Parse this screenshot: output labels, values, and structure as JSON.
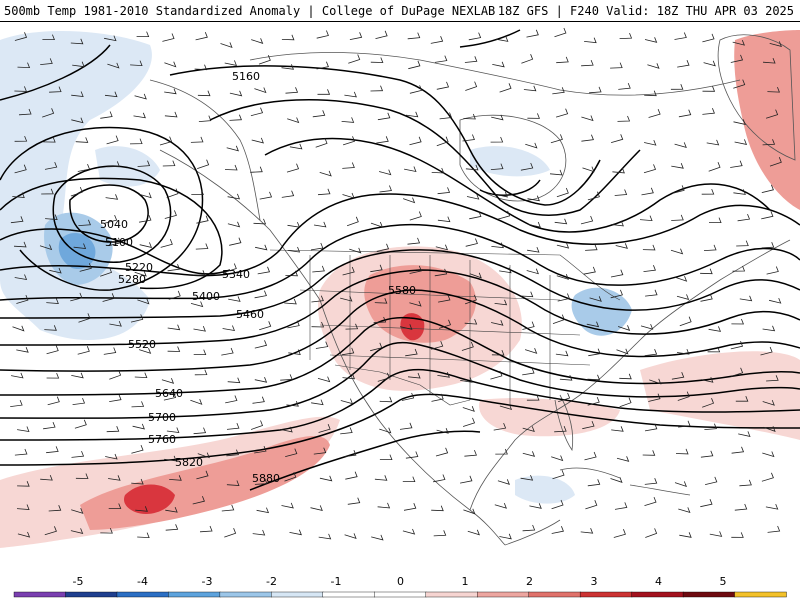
{
  "header": {
    "title_left": "500mb Temp 1981-2010 Standardized Anomaly | College of DuPage NEXLAB",
    "title_right": "18Z GFS | F240 Valid: 18Z THU APR 03 2025"
  },
  "contours": [
    {
      "label": "5040"
    },
    {
      "label": "5100"
    },
    {
      "label": "5160"
    },
    {
      "label": "5220"
    },
    {
      "label": "5280"
    },
    {
      "label": "5340"
    },
    {
      "label": "5400"
    },
    {
      "label": "5460"
    },
    {
      "label": "5520"
    },
    {
      "label": "5580"
    },
    {
      "label": "5640"
    },
    {
      "label": "5700"
    },
    {
      "label": "5760"
    },
    {
      "label": "5820"
    },
    {
      "label": "5880"
    }
  ],
  "legend": {
    "ticks": [
      "-5",
      "-4",
      "-3",
      "-2",
      "-1",
      "0",
      "1",
      "2",
      "3",
      "4",
      "5"
    ],
    "colors": [
      "#7a3fb0",
      "#1f3f8f",
      "#2b6fc4",
      "#5da3dd",
      "#9cc6e8",
      "#d6e6f4",
      "#ffffff",
      "#ffffff",
      "#f6d4d1",
      "#eda6a0",
      "#e0726b",
      "#cc3333",
      "#a3121e",
      "#6e0a10",
      "#f3c12a"
    ]
  },
  "shading_colors": {
    "cold_light": "#dce8f5",
    "cold_mid": "#a9cbe9",
    "cold_strong": "#6fa8dc",
    "warm_light": "#f7d7d4",
    "warm_mid": "#ee9d97",
    "warm_strong": "#d9363e"
  }
}
